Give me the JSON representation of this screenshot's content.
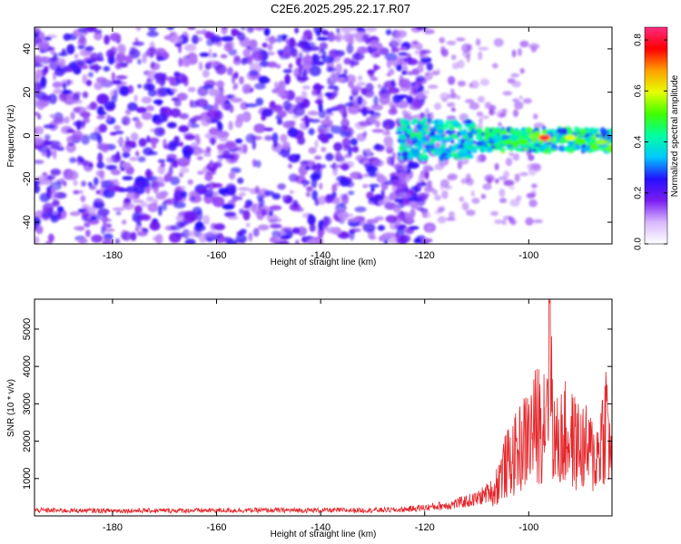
{
  "title": "C2E6.2025.295.22.17.R07",
  "colors": {
    "snr_line": "#e4262a",
    "blob": "#7b1fe6",
    "colormap": [
      "#ffffff",
      "#d8b8ff",
      "#7a1cf0",
      "#2410ff",
      "#00c8ff",
      "#00ffa0",
      "#40ff00",
      "#e6ff00",
      "#ffa000",
      "#ff0000",
      "#ff2a80"
    ]
  },
  "chart_data": [
    {
      "type": "heatmap",
      "xlabel": "Height of straight line (km)",
      "ylabel": "Frequency (Hz)",
      "xlim": [
        -195,
        -84
      ],
      "ylim": [
        -50,
        50
      ],
      "x_ticks": [
        -180,
        -160,
        -140,
        -120,
        -100
      ],
      "y_ticks": [
        -40,
        -20,
        0,
        20,
        40
      ],
      "colorbar": {
        "label": "Normalized spectral amplitude",
        "range": [
          0.0,
          0.85
        ],
        "ticks": [
          "0.0",
          "0.2",
          "0.4",
          "0.6",
          "0.8"
        ]
      },
      "features": [
        {
          "x_range": [
            -195,
            -125
          ],
          "freq_range": [
            -50,
            50
          ],
          "amplitude": "low, broadband noise"
        },
        {
          "x_range": [
            -125,
            -84
          ],
          "freq_center": -2,
          "freq_halfwidth": 6,
          "amplitude": "up to 0.85 near -97 km"
        }
      ],
      "peak": {
        "x": -97,
        "freq": -1,
        "value": 0.85
      }
    },
    {
      "type": "line",
      "xlabel": "Height of straight line (km)",
      "ylabel": "SNR (10 * v/v)",
      "xlim": [
        -195,
        -84
      ],
      "ylim": [
        0,
        5800
      ],
      "x_ticks": [
        -180,
        -160,
        -140,
        -120,
        -100
      ],
      "y_ticks": [
        1000,
        2000,
        3000,
        4000,
        5000
      ],
      "series": [
        {
          "x": [
            -195,
            -185,
            -175,
            -165,
            -155,
            -145,
            -135,
            -125,
            -120,
            -115,
            -110,
            -107,
            -105,
            -103,
            -101,
            -99,
            -97,
            -96,
            -95,
            -93,
            -91,
            -89,
            -87,
            -85,
            -84
          ],
          "values": [
            150,
            140,
            140,
            145,
            150,
            150,
            150,
            160,
            220,
            300,
            450,
            700,
            1600,
            2000,
            2500,
            3000,
            3500,
            5700,
            2400,
            2800,
            2500,
            2300,
            2000,
            3500,
            1500
          ]
        }
      ]
    }
  ]
}
